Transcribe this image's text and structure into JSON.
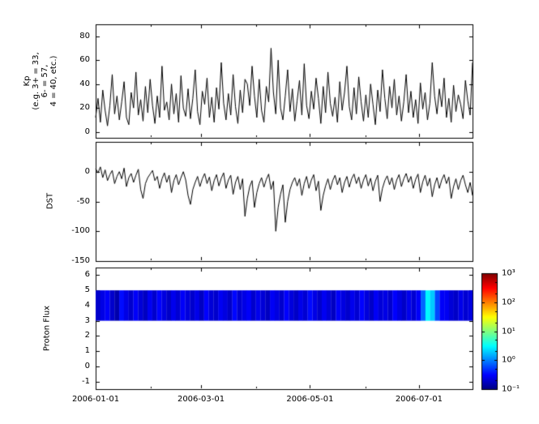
{
  "figure": {
    "bg": "#ffffff",
    "line_color": "#000000"
  },
  "x_axis": {
    "tick_labels": [
      "2006-01-01",
      "2006-03-01",
      "2006-05-01",
      "2006-07-01"
    ],
    "tick_days": [
      0,
      59,
      120,
      181
    ],
    "minor_tick_days": [
      31,
      90,
      151
    ],
    "range_days": [
      0,
      211
    ],
    "start_date": "2006-01-01",
    "end_date": "2006-07-31"
  },
  "panels": {
    "kp": {
      "ylabel_lines": [
        "Kp",
        "(e.g. 3+ = 33,",
        "6- = 57,",
        "4 = 40, etc.)"
      ]
    },
    "dst": {
      "ylabel": "DST"
    },
    "proton": {
      "ylabel": "Proton Flux"
    }
  },
  "colorbar": {
    "scale": "log",
    "min": 0.1,
    "max": 1000,
    "tick_values": [
      1000,
      100,
      10,
      1,
      0.1
    ],
    "tick_labels": [
      "10³",
      "10²",
      "10¹",
      "10⁰",
      "10⁻¹"
    ]
  },
  "chart_data": [
    {
      "id": "kp",
      "type": "line",
      "name": "Kp index",
      "ylabel": "Kp (e.g. 3+ = 33, 6- = 57, 4 = 40, etc.)",
      "ylim": [
        -5,
        90
      ],
      "yticks": [
        0,
        20,
        40,
        60,
        80
      ],
      "x_range": [
        "2006-01-01",
        "2006-07-31"
      ],
      "values": [
        12,
        28,
        8,
        35,
        18,
        5,
        22,
        48,
        15,
        30,
        10,
        25,
        42,
        12,
        6,
        33,
        20,
        50,
        14,
        27,
        9,
        38,
        16,
        44,
        22,
        7,
        30,
        12,
        55,
        18,
        25,
        10,
        40,
        15,
        32,
        8,
        47,
        20,
        13,
        36,
        11,
        28,
        52,
        17,
        6,
        34,
        23,
        45,
        12,
        29,
        8,
        37,
        19,
        58,
        24,
        10,
        32,
        14,
        48,
        21,
        7,
        35,
        16,
        44,
        40,
        22,
        55,
        30,
        12,
        44,
        18,
        8,
        38,
        25,
        70,
        33,
        15,
        60,
        20,
        10,
        30,
        52,
        17,
        36,
        9,
        26,
        43,
        14,
        57,
        22,
        11,
        34,
        19,
        45,
        28,
        7,
        38,
        16,
        50,
        24,
        13,
        29,
        8,
        42,
        18,
        33,
        55,
        21,
        10,
        37,
        15,
        46,
        25,
        9,
        31,
        12,
        40,
        23,
        6,
        35,
        17,
        52,
        28,
        11,
        38,
        20,
        44,
        14,
        30,
        9,
        25,
        48,
        16,
        34,
        12,
        27,
        7,
        41,
        19,
        33,
        10,
        24,
        58,
        30,
        15,
        36,
        21,
        45,
        12,
        28,
        8,
        39,
        17,
        31,
        23,
        11,
        43,
        26,
        14,
        58
      ]
    },
    {
      "id": "dst",
      "type": "line",
      "name": "DST",
      "ylabel": "DST",
      "ylim": [
        -150,
        50
      ],
      "yticks": [
        0,
        -50,
        -100,
        -150
      ],
      "x_range": [
        "2006-01-01",
        "2006-07-31"
      ],
      "values": [
        5,
        -2,
        8,
        -10,
        3,
        -15,
        -5,
        2,
        -20,
        -8,
        0,
        -12,
        6,
        -25,
        -10,
        -3,
        -18,
        -6,
        4,
        -30,
        -45,
        -20,
        -10,
        -4,
        2,
        -15,
        -8,
        -28,
        -12,
        -2,
        -18,
        -6,
        -35,
        -15,
        -5,
        -22,
        -10,
        0,
        -14,
        -40,
        -55,
        -30,
        -18,
        -8,
        -25,
        -12,
        -3,
        -20,
        -9,
        -32,
        -15,
        -5,
        -24,
        -11,
        -2,
        -28,
        -14,
        -6,
        -38,
        -18,
        -8,
        -30,
        -12,
        -75,
        -45,
        -25,
        -15,
        -60,
        -35,
        -20,
        -10,
        -26,
        -13,
        -4,
        -30,
        -16,
        -100,
        -60,
        -38,
        -22,
        -85,
        -50,
        -30,
        -18,
        -10,
        -24,
        -12,
        -40,
        -20,
        -8,
        -28,
        -14,
        -5,
        -32,
        -16,
        -65,
        -40,
        -24,
        -12,
        -30,
        -15,
        -6,
        -22,
        -10,
        -35,
        -18,
        -8,
        -26,
        -12,
        -4,
        -20,
        -9,
        -28,
        -14,
        -5,
        -24,
        -11,
        -32,
        -16,
        -6,
        -50,
        -28,
        -15,
        -7,
        -22,
        -10,
        -30,
        -14,
        -5,
        -25,
        -12,
        -3,
        -18,
        -8,
        -28,
        -13,
        -4,
        -35,
        -17,
        -6,
        -24,
        -11,
        -42,
        -22,
        -10,
        -28,
        -14,
        -5,
        -20,
        -9,
        -45,
        -25,
        -12,
        -30,
        -15,
        -6,
        -22,
        -35,
        -18,
        -40
      ]
    },
    {
      "id": "proton",
      "type": "heatmap",
      "name": "Proton Flux",
      "ylabel": "Proton Flux",
      "ylim": [
        -1.5,
        6.5
      ],
      "yticks": [
        -1,
        0,
        1,
        2,
        3,
        4,
        5,
        6
      ],
      "band_y": [
        3,
        5
      ],
      "scale": "log",
      "color_range": [
        0.1,
        1000
      ],
      "x_range": [
        "2006-01-01",
        "2006-07-31"
      ],
      "values": [
        0.2,
        0.25,
        0.3,
        0.2,
        0.15,
        0.35,
        0.25,
        0.2,
        0.3,
        0.22,
        0.18,
        0.28,
        0.2,
        0.32,
        0.24,
        0.19,
        0.27,
        0.21,
        0.3,
        0.23,
        0.2,
        0.26,
        0.18,
        0.31,
        0.22,
        0.2,
        0.28,
        0.24,
        0.19,
        0.33,
        0.21,
        0.25,
        0.3,
        0.2,
        0.27,
        0.22,
        0.18,
        0.29,
        0.24,
        0.2,
        0.31,
        0.23,
        0.19,
        0.26,
        0.21,
        0.34,
        0.25,
        0.2,
        0.28,
        0.22,
        0.18,
        0.3,
        0.24,
        0.2,
        0.27,
        0.21,
        0.32,
        0.23,
        0.19,
        0.29,
        0.22,
        0.25,
        0.2,
        0.31,
        0.24,
        0.19,
        0.27,
        0.21,
        0.3,
        0.8,
        3,
        2,
        0.6,
        0.3,
        0.28,
        0.22,
        0.19,
        0.26,
        0.21,
        0.24
      ]
    }
  ]
}
